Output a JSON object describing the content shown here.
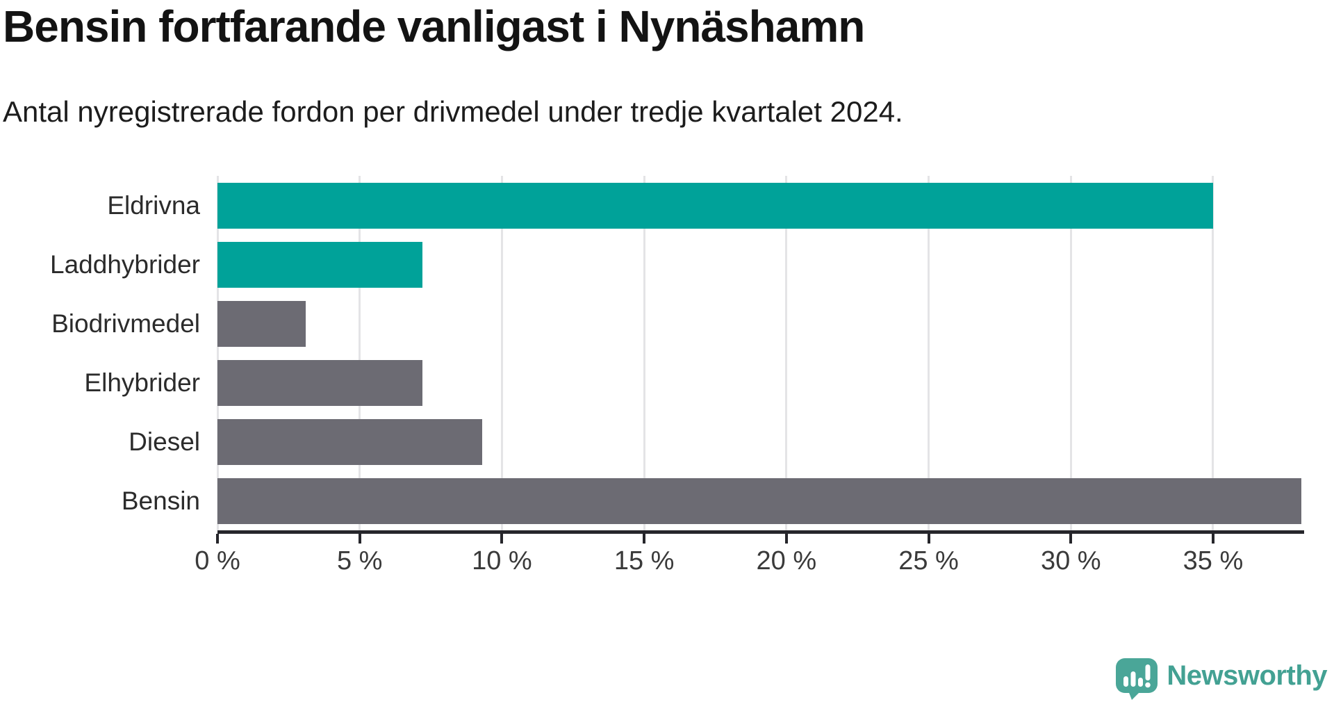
{
  "chart_data": {
    "type": "bar",
    "orientation": "horizontal",
    "title": "Bensin fortfarande vanligast i Nynäshamn",
    "subtitle": "Antal nyregistrerade fordon per drivmedel under tredje kvartalet 2024.",
    "categories": [
      "Eldrivna",
      "Laddhybrider",
      "Biodrivmedel",
      "Elhybrider",
      "Diesel",
      "Bensin"
    ],
    "values": [
      35.0,
      7.2,
      3.1,
      7.2,
      9.3,
      38.1
    ],
    "unit": "%",
    "xlabel": "",
    "ylabel": "",
    "xlim": [
      0,
      38.2
    ],
    "x_ticks": [
      0,
      5,
      10,
      15,
      20,
      25,
      30,
      35
    ],
    "x_tick_labels": [
      "0 %",
      "5 %",
      "10 %",
      "15 %",
      "20 %",
      "25 %",
      "30 %",
      "35 %"
    ],
    "grid": true,
    "legend": false,
    "bar_colors": [
      "#00a299",
      "#00a299",
      "#6c6b73",
      "#6c6b73",
      "#6c6b73",
      "#6c6b73"
    ]
  },
  "colors": {
    "accent_teal": "#00a299",
    "bar_gray": "#6c6b73",
    "gridline": "#e4e4e6",
    "axis": "#26262b",
    "logo_bubble": "#4aa698",
    "logo_text": "#43a193",
    "background": "#ffffff"
  },
  "branding": {
    "logo_text": "Newsworthy"
  }
}
